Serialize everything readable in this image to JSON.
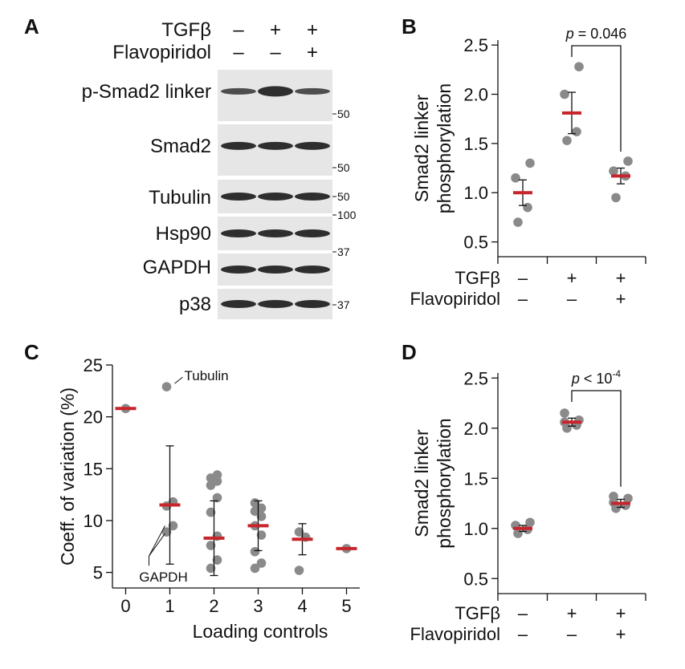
{
  "panels": {
    "A": {
      "letter": "A",
      "conditions": [
        {
          "name": "TGFβ",
          "signs": [
            "–",
            "+",
            "+"
          ]
        },
        {
          "name": "Flavopiridol",
          "signs": [
            "–",
            "–",
            "+"
          ]
        }
      ],
      "blots": [
        {
          "label": "p-Smad2 linker",
          "marker": "50"
        },
        {
          "label": "Smad2",
          "marker": "50"
        },
        {
          "label": "Tubulin",
          "marker": "50"
        },
        {
          "label": "Hsp90",
          "marker": "100"
        },
        {
          "label": "GAPDH",
          "marker": "37"
        },
        {
          "label": "p38",
          "marker": "37"
        }
      ]
    },
    "B": {
      "letter": "B"
    },
    "C": {
      "letter": "C"
    },
    "D": {
      "letter": "D"
    }
  },
  "chart_data": [
    {
      "panel": "B",
      "type": "scatter",
      "ylabel": [
        "Smad2 linker",
        "phosphorylation"
      ],
      "ylim": [
        0.35,
        2.55
      ],
      "yticks": [
        "0.5",
        "1.0",
        "1.5",
        "2.0",
        "2.5"
      ],
      "conditions": [
        {
          "name": "TGFβ",
          "signs": [
            "–",
            "+",
            "+"
          ]
        },
        {
          "name": "Flavopiridol",
          "signs": [
            "–",
            "–",
            "+"
          ]
        }
      ],
      "groups": [
        {
          "points": [
            0.7,
            0.85,
            1.15,
            1.3
          ],
          "mean": 1.0,
          "err": [
            0.87,
            1.13
          ]
        },
        {
          "points": [
            1.53,
            1.62,
            2.0,
            2.28
          ],
          "mean": 1.81,
          "err": [
            1.6,
            2.02
          ]
        },
        {
          "points": [
            0.95,
            1.17,
            1.22,
            1.32
          ],
          "mean": 1.17,
          "err": [
            1.09,
            1.25
          ]
        }
      ],
      "annotation": {
        "text": "p = 0.046",
        "between": [
          1,
          2
        ]
      }
    },
    {
      "panel": "C",
      "type": "scatter",
      "xlabel": "Loading controls",
      "ylabel": "Coeff. of variation (%)",
      "ylim": [
        3.5,
        25
      ],
      "xlim": [
        -0.3,
        5.3
      ],
      "yticks": [
        "5",
        "10",
        "15",
        "20",
        "25"
      ],
      "xticks": [
        "0",
        "1",
        "2",
        "3",
        "4",
        "5"
      ],
      "groups": [
        {
          "x": 0,
          "points": [
            20.8
          ],
          "mean": 20.8
        },
        {
          "x": 1,
          "points": [
            8.9,
            9.5,
            11.4,
            11.8,
            22.9
          ],
          "mean": 11.5,
          "err": [
            5.8,
            17.2
          ]
        },
        {
          "x": 2,
          "points": [
            5.4,
            6.2,
            7.6,
            8.5,
            10.8,
            12.2,
            13.4,
            13.8,
            14.1,
            14.4
          ],
          "mean": 8.3,
          "err": [
            4.7,
            11.9
          ]
        },
        {
          "x": 3,
          "points": [
            5.4,
            5.9,
            7.0,
            8.6,
            9.5,
            10.4,
            10.9,
            11.2,
            11.7
          ],
          "mean": 9.5,
          "err": [
            7.1,
            11.9
          ]
        },
        {
          "x": 4,
          "points": [
            5.2,
            8.4,
            8.9
          ],
          "mean": 8.2,
          "err": [
            6.7,
            9.7
          ]
        },
        {
          "x": 5,
          "points": [
            7.3
          ],
          "mean": 7.3
        }
      ],
      "annotations": [
        {
          "text": "Tubulin",
          "x": 1,
          "y": 22.9
        },
        {
          "text": "GAPDH",
          "x": 1,
          "y": 8.9
        }
      ]
    },
    {
      "panel": "D",
      "type": "scatter",
      "ylabel": [
        "Smad2 linker",
        "phosphorylation"
      ],
      "ylim": [
        0.35,
        2.55
      ],
      "yticks": [
        "0.5",
        "1.0",
        "1.5",
        "2.0",
        "2.5"
      ],
      "conditions": [
        {
          "name": "TGFβ",
          "signs": [
            "–",
            "+",
            "+"
          ]
        },
        {
          "name": "Flavopiridol",
          "signs": [
            "–",
            "–",
            "+"
          ]
        }
      ],
      "groups": [
        {
          "points": [
            0.95,
            0.99,
            1.03,
            1.06
          ],
          "mean": 1.0,
          "err": [
            0.97,
            1.03
          ]
        },
        {
          "points": [
            2.0,
            2.03,
            2.06,
            2.08,
            2.15
          ],
          "mean": 2.06,
          "err": [
            2.02,
            2.1
          ]
        },
        {
          "points": [
            1.2,
            1.23,
            1.26,
            1.3,
            1.32
          ],
          "mean": 1.25,
          "err": [
            1.21,
            1.29
          ]
        }
      ],
      "annotation": {
        "text": "p < 10",
        "superscript": "-4",
        "between": [
          1,
          2
        ]
      }
    }
  ],
  "colors": {
    "mean_bar": "#c8242b",
    "point": "#8a8a8a",
    "axis": "#111111",
    "blot_band": "#1a1a1a",
    "blot_bg": "#e6e6e6"
  }
}
